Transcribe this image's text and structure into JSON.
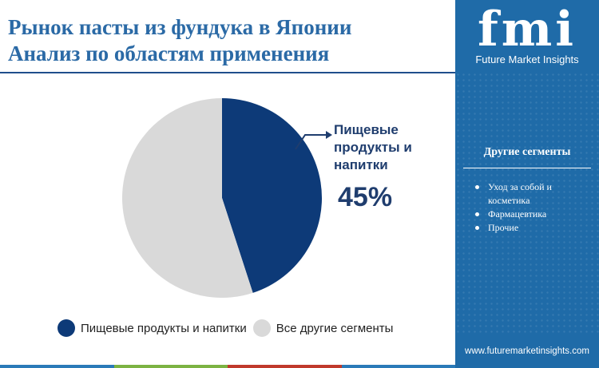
{
  "title": {
    "line1": "Рынок пасты из фундука в Японии",
    "line2": "Анализ по областям применения"
  },
  "sidebar": {
    "logo_text": "fmi",
    "logo_subtitle": "Future Market Insights",
    "heading": "Другие сегменты",
    "items": [
      "Уход за собой и косметика",
      "Фармацевтика",
      "Прочие"
    ],
    "url": "www.futuremarketinsights.com"
  },
  "callout": {
    "label": "Пищевые продукты и напитки",
    "value": "45%"
  },
  "colors": {
    "brand_blue": "#1f6ba8",
    "slice_primary": "#0d3a78",
    "slice_other": "#d9d9d9",
    "title_blue": "#2b6aa6",
    "bar": [
      "#2a7ab8",
      "#7cb342",
      "#c0392b",
      "#2a7ab8"
    ]
  },
  "chart_data": {
    "type": "pie",
    "title": "Рынок пасты из фундука в Японии Анализ по областям применения",
    "slices": [
      {
        "name": "Пищевые продукты и напитки",
        "value": 45,
        "color": "#0d3a78"
      },
      {
        "name": "Все другие сегменты",
        "value": 55,
        "color": "#d9d9d9"
      }
    ],
    "legend_placement": "bottom"
  }
}
